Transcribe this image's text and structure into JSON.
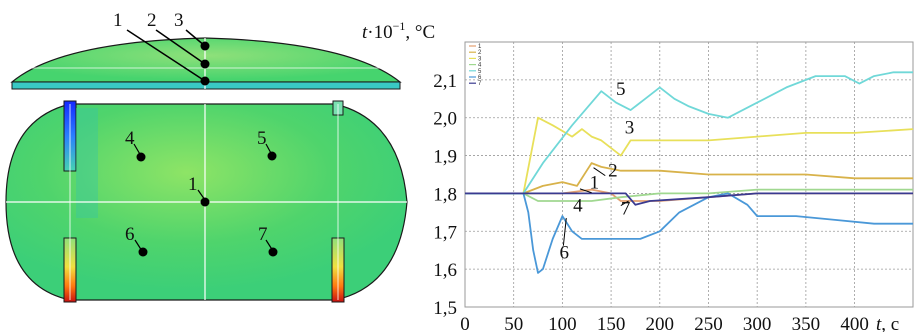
{
  "figure": {
    "y_title_italic": "t",
    "y_title_rest": "·10",
    "y_title_exp": "−1",
    "y_title_unit": ", °C",
    "x_title_italic": "t",
    "x_title_unit": ", c"
  },
  "contour": {
    "colors": {
      "field": "#44d96a",
      "hot": "#ff6a00",
      "cold": "#1a3cff",
      "dark": "#1a1a1a",
      "light": "#a8f06a"
    },
    "points": [
      {
        "label": "1"
      },
      {
        "label": "2"
      },
      {
        "label": "3"
      },
      {
        "label": "4"
      },
      {
        "label": "5"
      },
      {
        "label": "6"
      },
      {
        "label": "7"
      },
      {
        "label": "1"
      }
    ]
  },
  "chart_data": {
    "type": "line",
    "title": "",
    "xlabel": "t, c",
    "ylabel": "t·10−1, °C",
    "xlim": [
      0,
      460
    ],
    "ylim": [
      1.5,
      2.2
    ],
    "xticks": [
      "0",
      "50",
      "100",
      "150",
      "200",
      "250",
      "300",
      "350",
      "400"
    ],
    "xtick_values": [
      0,
      50,
      100,
      150,
      200,
      250,
      300,
      350,
      400
    ],
    "yticks": [
      "1,5",
      "1,6",
      "1,7",
      "1,8",
      "1,9",
      "2,0",
      "2,1"
    ],
    "ytick_values": [
      1.5,
      1.6,
      1.7,
      1.8,
      1.9,
      2.0,
      2.1
    ],
    "grid": true,
    "legend_position": "top-left",
    "legend": [
      "1",
      "2",
      "3",
      "4",
      "5",
      "6",
      "7"
    ],
    "series": [
      {
        "name": "1",
        "color": "#e4a070",
        "x": [
          0,
          60,
          100,
          130,
          150,
          160,
          200,
          250,
          300,
          350,
          400,
          460
        ],
        "y": [
          1.8,
          1.8,
          1.8,
          1.81,
          1.8,
          1.78,
          1.78,
          1.79,
          1.8,
          1.8,
          1.8,
          1.8
        ]
      },
      {
        "name": "2",
        "color": "#d8b24a",
        "x": [
          0,
          60,
          80,
          100,
          115,
          125,
          130,
          140,
          160,
          200,
          250,
          300,
          350,
          400,
          460
        ],
        "y": [
          1.8,
          1.8,
          1.82,
          1.83,
          1.82,
          1.86,
          1.88,
          1.87,
          1.86,
          1.86,
          1.85,
          1.85,
          1.85,
          1.84,
          1.84
        ]
      },
      {
        "name": "3",
        "color": "#e8e05a",
        "x": [
          0,
          60,
          75,
          90,
          110,
          120,
          130,
          140,
          160,
          170,
          200,
          250,
          300,
          350,
          400,
          460
        ],
        "y": [
          1.8,
          1.8,
          2.0,
          1.98,
          1.95,
          1.97,
          1.95,
          1.94,
          1.9,
          1.94,
          1.94,
          1.94,
          1.95,
          1.96,
          1.96,
          1.97
        ]
      },
      {
        "name": "4",
        "color": "#a0d890",
        "x": [
          0,
          60,
          75,
          100,
          130,
          160,
          200,
          250,
          300,
          350,
          400,
          460
        ],
        "y": [
          1.8,
          1.8,
          1.78,
          1.78,
          1.78,
          1.79,
          1.8,
          1.8,
          1.81,
          1.81,
          1.81,
          1.81
        ]
      },
      {
        "name": "5",
        "color": "#70d8d8",
        "x": [
          0,
          60,
          80,
          110,
          140,
          155,
          170,
          185,
          200,
          215,
          230,
          250,
          270,
          300,
          330,
          360,
          390,
          405,
          420,
          440,
          460
        ],
        "y": [
          1.8,
          1.8,
          1.88,
          1.98,
          2.07,
          2.04,
          2.02,
          2.05,
          2.08,
          2.05,
          2.03,
          2.01,
          2.0,
          2.04,
          2.08,
          2.11,
          2.11,
          2.09,
          2.11,
          2.12,
          2.12
        ]
      },
      {
        "name": "6",
        "color": "#4a98d8",
        "x": [
          0,
          60,
          65,
          70,
          75,
          80,
          90,
          100,
          105,
          110,
          120,
          150,
          180,
          200,
          220,
          250,
          270,
          290,
          300,
          340,
          380,
          420,
          460
        ],
        "y": [
          1.8,
          1.8,
          1.75,
          1.65,
          1.59,
          1.6,
          1.68,
          1.74,
          1.72,
          1.7,
          1.68,
          1.68,
          1.68,
          1.7,
          1.75,
          1.79,
          1.8,
          1.77,
          1.74,
          1.74,
          1.73,
          1.72,
          1.72
        ]
      },
      {
        "name": "7",
        "color": "#3a3a90",
        "x": [
          0,
          60,
          100,
          150,
          165,
          175,
          190,
          250,
          300,
          350,
          400,
          460
        ],
        "y": [
          1.8,
          1.8,
          1.8,
          1.8,
          1.8,
          1.77,
          1.78,
          1.79,
          1.8,
          1.8,
          1.8,
          1.8
        ]
      }
    ],
    "annotations": [
      "1",
      "2",
      "3",
      "4",
      "5",
      "6",
      "7"
    ]
  }
}
